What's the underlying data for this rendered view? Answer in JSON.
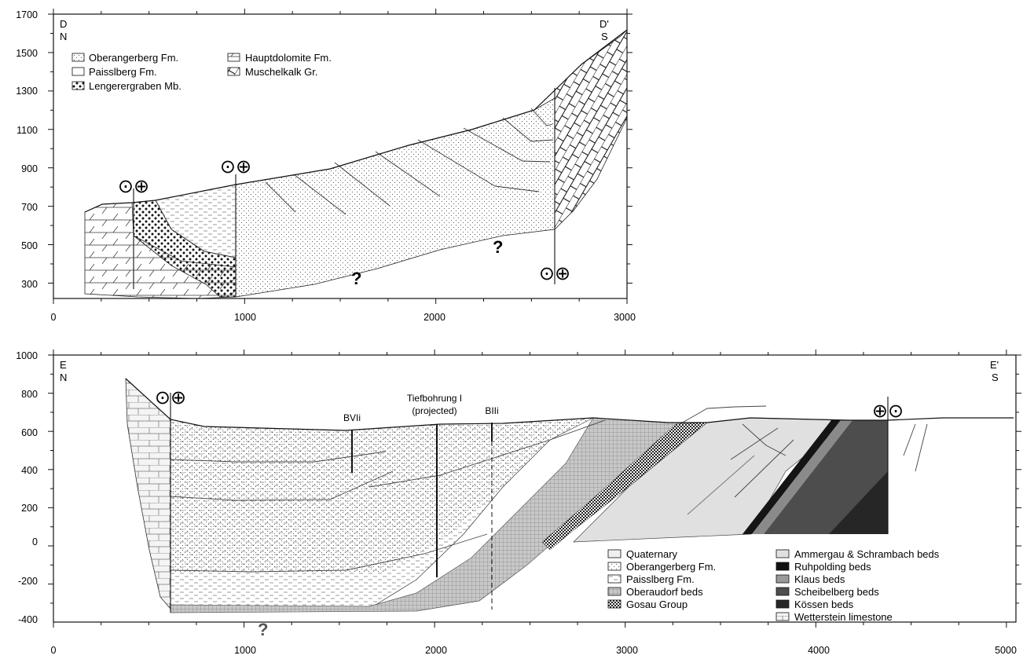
{
  "top_section": {
    "y_ticks": [
      "1700",
      "1500",
      "1300",
      "1100",
      "900",
      "700",
      "500",
      "300"
    ],
    "x_ticks": [
      "0",
      "1000",
      "2000",
      "3000"
    ],
    "left_label_1": "D",
    "left_label_2": "N",
    "right_label_1": "D'",
    "right_label_2": "S",
    "legend_left": [
      {
        "pattern": "fine-dots",
        "label": "Oberangerberg Fm."
      },
      {
        "pattern": "blank",
        "label": "Paisslberg Fm."
      },
      {
        "pattern": "coarse-dots",
        "label": "Lengerergraben Mb."
      }
    ],
    "legend_right": [
      {
        "pattern": "diagonal",
        "label": "Hauptdolomite Fm."
      },
      {
        "pattern": "brick",
        "label": "Muschelkalk Gr."
      }
    ],
    "question_mark": "?",
    "fault_symbols": "⊙⊕"
  },
  "bottom_section": {
    "y_ticks": [
      "1000",
      "800",
      "600",
      "400",
      "200",
      "0",
      "-200",
      "-400"
    ],
    "x_ticks": [
      "0",
      "1000",
      "2000",
      "3000",
      "4000",
      "5000"
    ],
    "left_label_1": "E",
    "left_label_2": "N",
    "right_label_1": "E'",
    "right_label_2": "S",
    "well_bvii": "BVIi",
    "well_tiefbohrung_1": "Tiefbohrung I",
    "well_tiefbohrung_2": "(projected)",
    "well_blli": "BIIi",
    "legend_left": [
      {
        "pattern": "blank-light",
        "label": "Quaternary"
      },
      {
        "pattern": "fine-dots",
        "label": "Oberangerberg Fm."
      },
      {
        "pattern": "dashes",
        "label": "Paisslberg Fm."
      },
      {
        "pattern": "grid",
        "label": "Oberaudorf beds"
      },
      {
        "pattern": "checker",
        "label": "Gosau Group"
      }
    ],
    "legend_right": [
      {
        "pattern": "light-gray",
        "label": "Ammergau & Schrambach beds"
      },
      {
        "pattern": "black",
        "label": "Ruhpolding beds"
      },
      {
        "pattern": "mid-gray",
        "label": "Klaus beds"
      },
      {
        "pattern": "dark-gray",
        "label": "Scheibelberg beds"
      },
      {
        "pattern": "very-dark",
        "label": "Kössen beds"
      },
      {
        "pattern": "brick-light",
        "label": "Wetterstein limestone"
      }
    ],
    "question_mark": "?",
    "fault_symbols_left": "⊙⊕",
    "fault_symbols_right": "⊕⊙"
  }
}
